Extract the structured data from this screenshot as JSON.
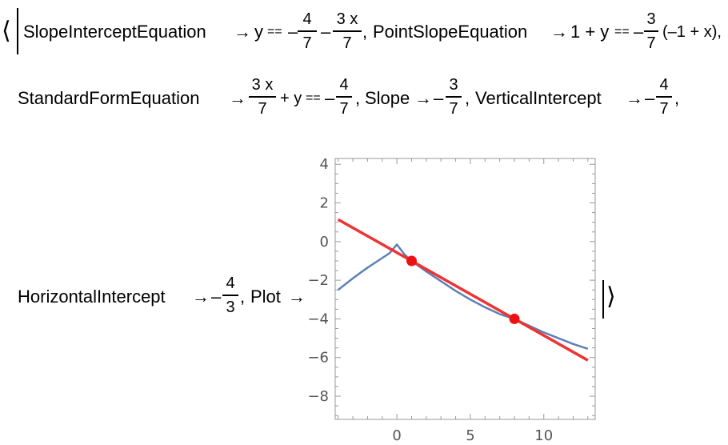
{
  "row1": {
    "open_bracket": "⟨",
    "si_key": "SlopeInterceptEquation",
    "arrow": "→",
    "si_lhs": "y",
    "eq": "==",
    "minus": "–",
    "si_frac1_num": "4",
    "si_frac1_den": "7",
    "si_frac2_num": "3 x",
    "si_frac2_den": "7",
    "comma": ",",
    "ps_key": "PointSlopeEquation",
    "ps_lhs": "1 + y",
    "ps_frac_num": "3",
    "ps_frac_den": "7",
    "ps_tail": "(–1 + x),"
  },
  "row2": {
    "sf_key": "StandardFormEquation",
    "sf_frac_num": "3 x",
    "sf_frac_den": "7",
    "sf_mid": "+ y",
    "sf_rhs_num": "4",
    "sf_rhs_den": "7",
    "slope_key": "Slope",
    "slope_num": "3",
    "slope_den": "7",
    "vi_key": "VerticalIntercept",
    "vi_num": "4",
    "vi_den": "7"
  },
  "row3": {
    "hi_key": "HorizontalIntercept",
    "hi_num": "4",
    "hi_den": "3",
    "plot_key": "Plot",
    "close_bracket": "⟩"
  },
  "chart_data": {
    "type": "line",
    "title": "",
    "xlabel": "",
    "ylabel": "",
    "xlim": [
      -4.2,
      13.5
    ],
    "ylim": [
      -9.2,
      4.3
    ],
    "x_ticks": [
      0,
      5,
      10
    ],
    "y_ticks": [
      4,
      2,
      0,
      -2,
      -4,
      -6,
      -8
    ],
    "x_tick_labels": [
      "0",
      "5",
      "10"
    ],
    "y_tick_labels": [
      "4",
      "2",
      "0",
      "−2",
      "−4",
      "−6",
      "−8"
    ],
    "grid": false,
    "series": [
      {
        "color": "#5e81b5",
        "x": [
          -4,
          -3,
          -2,
          -1,
          -0.5,
          0,
          0.5,
          1,
          2,
          3,
          4,
          5,
          6,
          7,
          8,
          9,
          10,
          11,
          12,
          13
        ],
        "y": [
          -2.5,
          -1.9,
          -1.35,
          -0.85,
          -0.6,
          -0.15,
          -0.65,
          -1.0,
          -1.55,
          -2.05,
          -2.55,
          -3.0,
          -3.4,
          -3.75,
          -4.0,
          -4.35,
          -4.7,
          -5.0,
          -5.3,
          -5.55
        ]
      },
      {
        "color": "#ee3333",
        "x": [
          -4,
          13
        ],
        "y": [
          1.1429,
          -6.1429
        ]
      }
    ],
    "points": {
      "color": "#ee1111",
      "x": [
        1,
        8
      ],
      "y": [
        -1,
        -4
      ]
    }
  }
}
